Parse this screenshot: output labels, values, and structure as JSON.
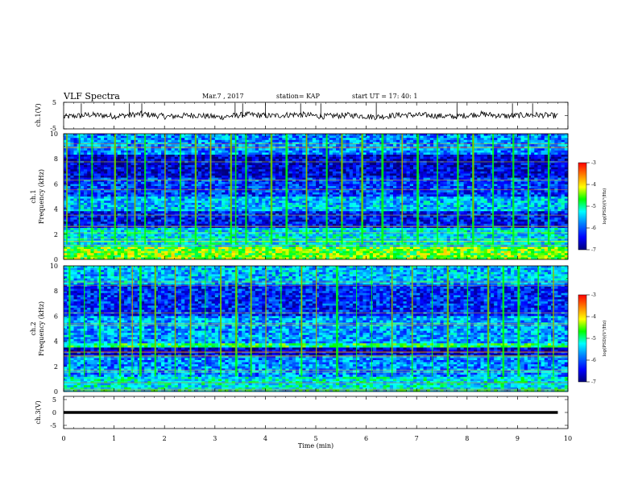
{
  "header": {
    "title": "VLF Spectra",
    "date": "Mar.7 , 2017",
    "station": "station= KAP",
    "start": "start UT = 17: 40: 1"
  },
  "chart_data": [
    {
      "type": "line",
      "panel": "ch1-waveform",
      "ylabel": "ch.1(V)",
      "ylim": [
        -5,
        5
      ],
      "yticks": [
        "5",
        "-5"
      ],
      "x_range_min": [
        0,
        9.8
      ],
      "approx_level_V": [
        -0.5,
        0.3,
        -0.2,
        0.6,
        -0.4,
        0.2,
        -0.6,
        0.4,
        -0.1,
        0.5,
        -0.3,
        0.2,
        -0.5,
        0.3,
        0.1,
        -0.4,
        0.6,
        -0.2,
        0.3,
        -0.1
      ],
      "spikes_min": [
        0.35,
        1.3,
        1.55,
        3.4,
        3.55,
        4.0,
        4.7,
        5.1,
        6.2,
        7.8,
        8.9,
        9.3
      ]
    },
    {
      "type": "heatmap",
      "panel": "ch1-spectrogram",
      "ylabel_lines": [
        "ch.1",
        "Frequency (kHz)"
      ],
      "ylim": [
        0,
        10
      ],
      "yticks": [
        "0",
        "2",
        "4",
        "6",
        "8",
        "10"
      ],
      "colorbar_label": "log(PSD)(V²/Hz)",
      "colorbar_ticks": [
        "-3",
        "-4",
        "-5",
        "-6",
        "-7"
      ],
      "clim": [
        -7,
        -3
      ],
      "band_levels_by_kHz": [
        [
          0,
          1,
          -4.5
        ],
        [
          1,
          2.5,
          -5.4
        ],
        [
          2.5,
          3.8,
          -6.4
        ],
        [
          3.8,
          5,
          -5.6
        ],
        [
          5,
          6.5,
          -6.2
        ],
        [
          6.5,
          8.3,
          -6.6
        ],
        [
          8.3,
          10,
          -5.8
        ]
      ],
      "burst_times_min": [
        0.05,
        0.3,
        0.55,
        1.0,
        1.25,
        1.4,
        1.6,
        2.0,
        2.3,
        2.6,
        2.9,
        3.3,
        3.4,
        3.6,
        4.1,
        4.4,
        4.8,
        5.2,
        5.5,
        5.9,
        6.3,
        6.7,
        7.0,
        7.4,
        7.8,
        8.1,
        8.5,
        8.9,
        9.2,
        9.6
      ]
    },
    {
      "type": "heatmap",
      "panel": "ch2-spectrogram",
      "ylabel_lines": [
        "ch.2",
        "Frequency (kHz)"
      ],
      "ylim": [
        0,
        10
      ],
      "yticks": [
        "0",
        "2",
        "4",
        "6",
        "8",
        "10"
      ],
      "colorbar_label": "log(PSD)(V²/Hz)",
      "colorbar_ticks": [
        "-3",
        "-4",
        "-5",
        "-6",
        "-7"
      ],
      "clim": [
        -7,
        -3
      ],
      "band_levels_by_kHz": [
        [
          0,
          1.2,
          -5.3
        ],
        [
          1.2,
          2.8,
          -5.8
        ],
        [
          2.8,
          3.5,
          -6.6
        ],
        [
          3.5,
          3.9,
          -4.9
        ],
        [
          3.9,
          6,
          -5.7
        ],
        [
          6,
          8.5,
          -6.3
        ],
        [
          8.5,
          10,
          -5.6
        ]
      ],
      "burst_times_min": [
        0.1,
        0.4,
        0.7,
        1.1,
        1.35,
        1.5,
        1.8,
        2.2,
        2.5,
        2.8,
        3.1,
        3.4,
        3.7,
        4.0,
        4.3,
        4.7,
        5.0,
        5.4,
        5.8,
        6.1,
        6.5,
        6.9,
        7.3,
        7.6,
        8.0,
        8.4,
        8.7,
        9.0,
        9.4,
        9.7
      ]
    },
    {
      "type": "line",
      "panel": "ch3-waveform",
      "ylabel": "ch.3(V)",
      "ylim": [
        -5,
        5
      ],
      "yticks": [
        "5",
        "0",
        "-5"
      ],
      "x_range_min": [
        0,
        9.8
      ],
      "level_V": 0
    }
  ],
  "xaxis": {
    "label": "Time (min)",
    "ticks": [
      "0",
      "1",
      "2",
      "3",
      "4",
      "5",
      "6",
      "7",
      "8",
      "9",
      "10"
    ],
    "range": [
      0,
      10
    ]
  },
  "colors": {
    "trace": "#000000",
    "colormap": [
      "#00007a",
      "#0000ff",
      "#0080ff",
      "#00ffff",
      "#00ff00",
      "#ffff00",
      "#ff8000",
      "#ff0000"
    ]
  }
}
